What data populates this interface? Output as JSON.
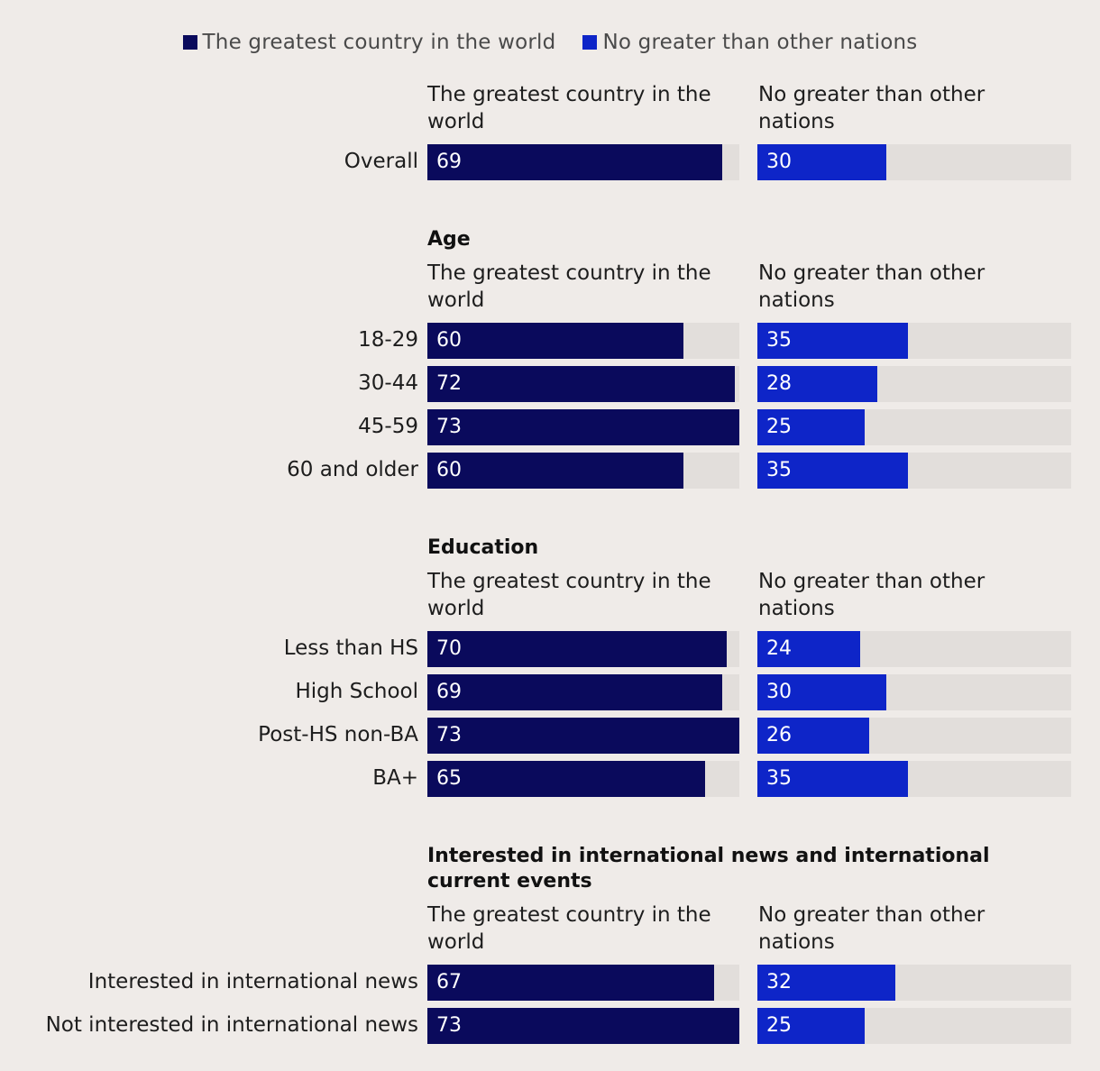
{
  "chart_data": {
    "type": "bar",
    "orientation": "horizontal",
    "stacked": false,
    "xlim": [
      0,
      73
    ],
    "legend": {
      "placement": "top-center",
      "items": [
        {
          "label": "The greatest country in the world",
          "color": "#0a0a5c"
        },
        {
          "label": "No greater than other nations",
          "color": "#0e25c8"
        }
      ]
    },
    "column_headers": [
      "The greatest country in the world",
      "No greater than other nations"
    ],
    "sections": [
      {
        "title": "",
        "rows": [
          {
            "label": "Overall",
            "values": [
              69,
              30
            ]
          }
        ]
      },
      {
        "title": "Age",
        "rows": [
          {
            "label": "18-29",
            "values": [
              60,
              35
            ]
          },
          {
            "label": "30-44",
            "values": [
              72,
              28
            ]
          },
          {
            "label": "45-59",
            "values": [
              73,
              25
            ]
          },
          {
            "label": "60 and older",
            "values": [
              60,
              35
            ]
          }
        ]
      },
      {
        "title": "Education",
        "rows": [
          {
            "label": "Less than HS",
            "values": [
              70,
              24
            ]
          },
          {
            "label": "High School",
            "values": [
              69,
              30
            ]
          },
          {
            "label": "Post-HS non-BA",
            "values": [
              73,
              26
            ]
          },
          {
            "label": "BA+",
            "values": [
              65,
              35
            ]
          }
        ]
      },
      {
        "title": "Interested in international news and international current events",
        "rows": [
          {
            "label": "Interested in international news",
            "values": [
              67,
              32
            ]
          },
          {
            "label": "Not interested in international news",
            "values": [
              73,
              25
            ]
          }
        ]
      }
    ]
  }
}
